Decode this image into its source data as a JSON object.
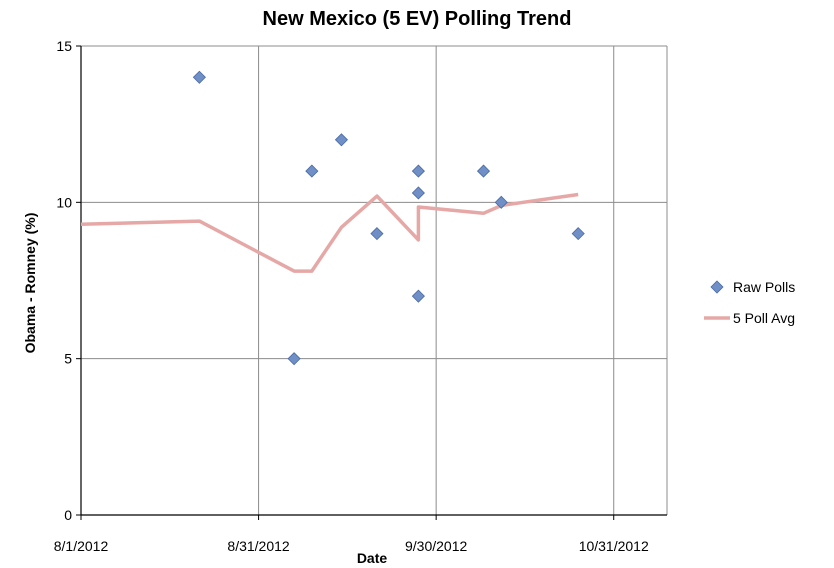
{
  "chart_data": {
    "type": "scatter",
    "title": "New Mexico (5 EV) Polling Trend",
    "xlabel": "Date",
    "ylabel": "Obama - Romney (%)",
    "xlim": [
      "2012-08-01",
      "2012-11-08"
    ],
    "ylim": [
      0,
      15
    ],
    "x_ticks": [
      "8/1/2012",
      "8/31/2012",
      "9/30/2012",
      "10/31/2012"
    ],
    "y_ticks": [
      0,
      5,
      10,
      15
    ],
    "grid": true,
    "legend": "right",
    "series": [
      {
        "name": "Raw Polls",
        "kind": "scatter",
        "color": "#6f8fc6",
        "points": [
          {
            "x": "2012-08-21",
            "y": 14
          },
          {
            "x": "2012-09-06",
            "y": 5
          },
          {
            "x": "2012-09-09",
            "y": 11
          },
          {
            "x": "2012-09-14",
            "y": 12
          },
          {
            "x": "2012-09-20",
            "y": 9
          },
          {
            "x": "2012-09-27",
            "y": 11
          },
          {
            "x": "2012-09-27",
            "y": 10.3
          },
          {
            "x": "2012-09-27",
            "y": 7
          },
          {
            "x": "2012-10-08",
            "y": 11
          },
          {
            "x": "2012-10-11",
            "y": 10
          },
          {
            "x": "2012-10-24",
            "y": 9
          }
        ]
      },
      {
        "name": "5 Poll Avg",
        "kind": "line",
        "color": "#e5a8a6",
        "points": [
          {
            "x": "2012-08-01",
            "y": 9.3
          },
          {
            "x": "2012-08-21",
            "y": 9.4
          },
          {
            "x": "2012-09-06",
            "y": 7.8
          },
          {
            "x": "2012-09-09",
            "y": 7.8
          },
          {
            "x": "2012-09-14",
            "y": 9.2
          },
          {
            "x": "2012-09-20",
            "y": 10.2
          },
          {
            "x": "2012-09-27",
            "y": 8.8
          },
          {
            "x": "2012-09-27",
            "y": 9.85
          },
          {
            "x": "2012-10-08",
            "y": 9.65
          },
          {
            "x": "2012-10-11",
            "y": 9.9
          },
          {
            "x": "2012-10-24",
            "y": 10.25
          }
        ]
      }
    ]
  }
}
